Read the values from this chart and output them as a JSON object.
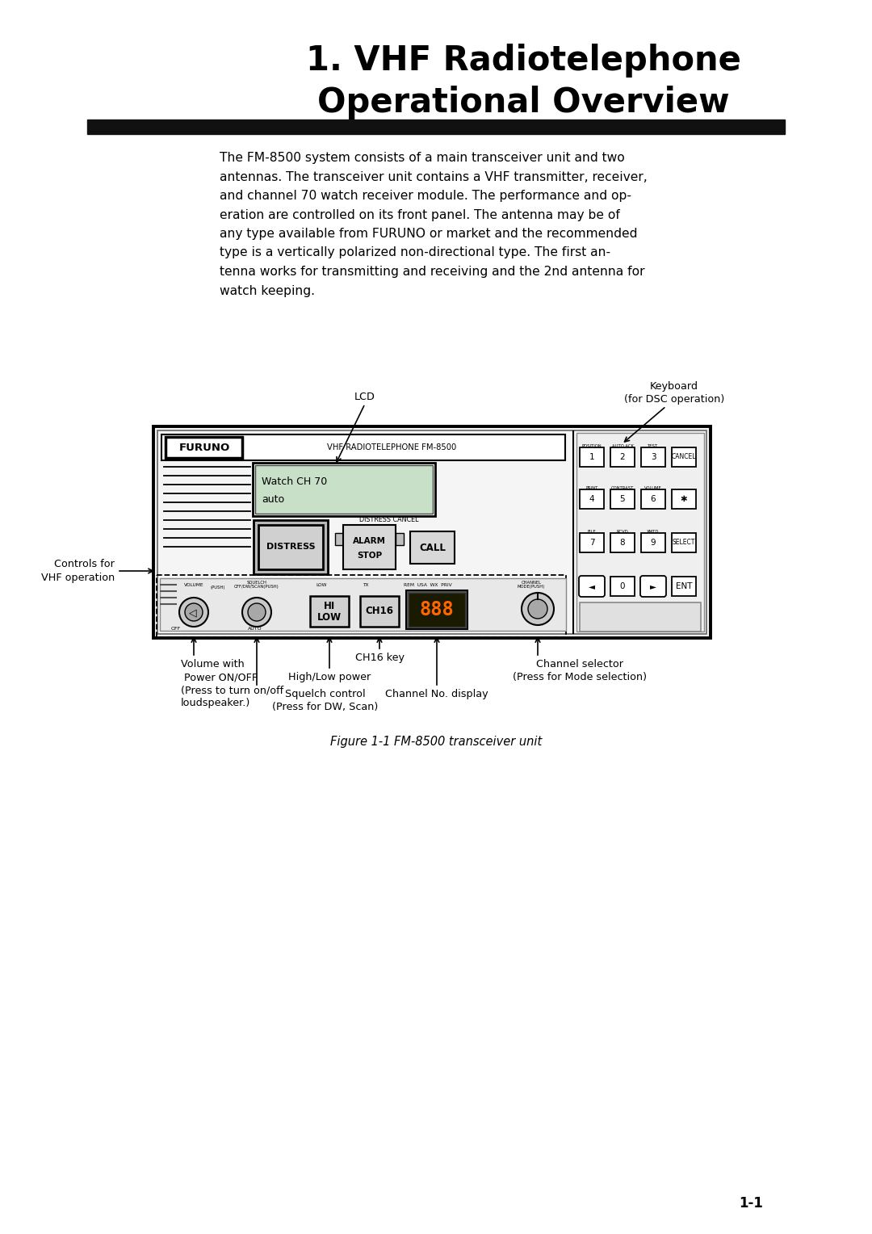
{
  "title_line1": "1. VHF Radiotelephone",
  "title_line2": "Operational Overview",
  "body_text_lines": [
    "The FM-8500 system consists of a main transceiver unit and two",
    "antennas. The transceiver unit contains a VHF transmitter, receiver,",
    "and channel 70 watch receiver module. The performance and op-",
    "eration are controlled on its front panel. The antenna may be of",
    "any type available from FURUNO or market and the recommended",
    "type is a vertically polarized non-directional type. The first an-",
    "tenna works for transmitting and receiving and the 2nd antenna for",
    "watch keeping."
  ],
  "fig_caption": "Figure 1-1 FM-8500 transceiver unit",
  "page_number": "1-1",
  "bg_color": "#ffffff",
  "text_color": "#000000",
  "title_bar_color": "#111111",
  "device_bg": "#f5f5f5",
  "device_border": "#000000",
  "lcd_bg": "#c8dfc8",
  "key_bg": "#ffffff",
  "knob_color": "#c8c8c8",
  "knob_inner": "#a8a8a8",
  "disp_bg": "#1a1a00",
  "disp_fg": "#ff6600",
  "label_lcd": "LCD",
  "label_keyboard_1": "Keyboard",
  "label_keyboard_2": "(for DSC operation)",
  "label_controls_1": "Controls for",
  "label_controls_2": "VHF operation",
  "label_volume_1": "Volume with",
  "label_volume_2": " Power ON/OFF",
  "label_volume_3": "(Press to turn on/off",
  "label_volume_4": "loudspeaker.)",
  "label_high_low": "High/Low power",
  "label_ch16": "CH16 key",
  "label_squelch_1": "Squelch control",
  "label_squelch_2": "(Press for DW, Scan)",
  "label_channel_no": "Channel No. display",
  "label_channel_sel_1": "Channel selector",
  "label_channel_sel_2": "(Press for Mode selection)"
}
